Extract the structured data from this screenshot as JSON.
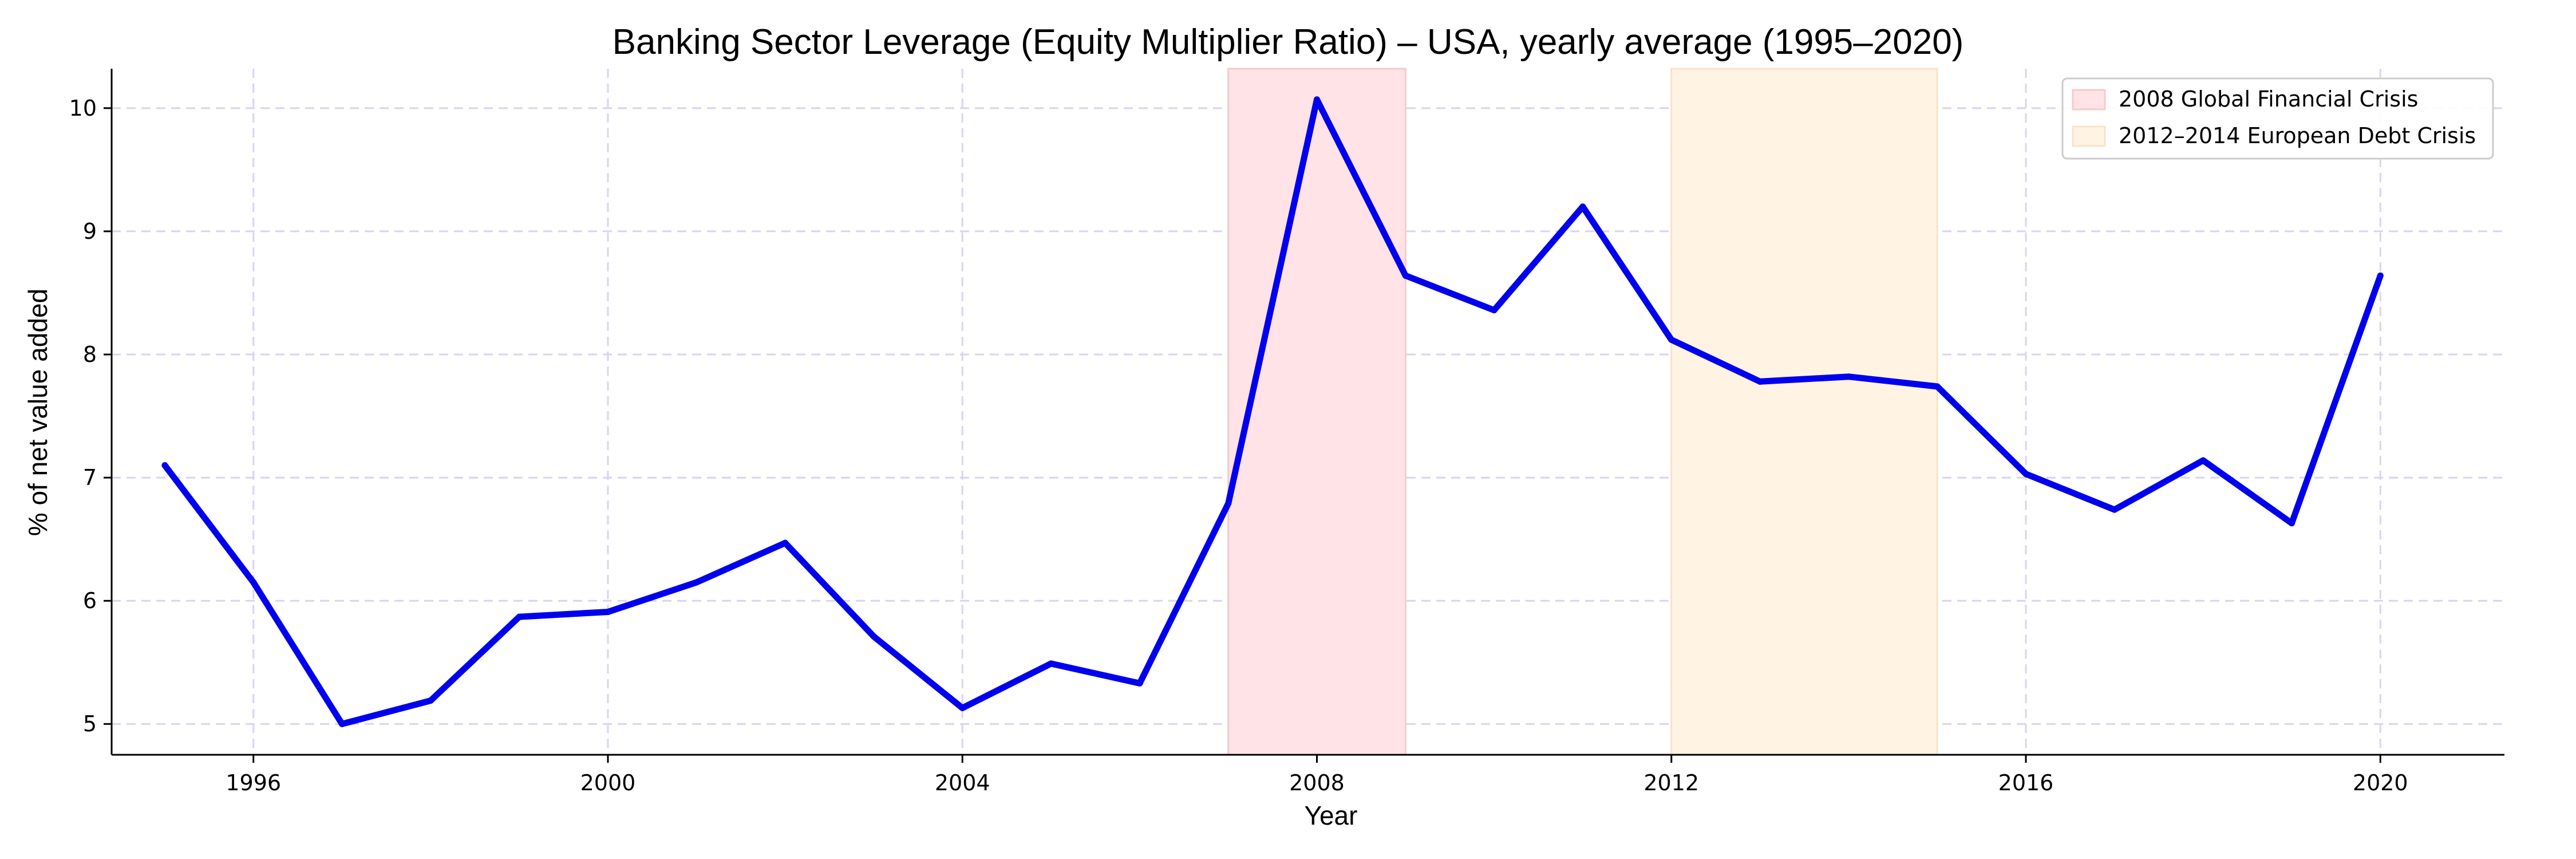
{
  "chart_data": {
    "type": "line",
    "title": "Banking Sector Leverage (Equity Multiplier Ratio) – USA, yearly average (1995–2020)",
    "xlabel": "Year",
    "ylabel": "% of net value added",
    "xlim": [
      1994.4,
      2021.4
    ],
    "ylim": [
      4.75,
      10.32
    ],
    "xticks": [
      1996,
      2000,
      2004,
      2008,
      2012,
      2016,
      2020
    ],
    "yticks": [
      5,
      6,
      7,
      8,
      9,
      10
    ],
    "grid": true,
    "legend_position": "top-right",
    "series": [
      {
        "color": "#0000ee",
        "x": [
          1995,
          1996,
          1997,
          1998,
          1999,
          2000,
          2001,
          2002,
          2003,
          2004,
          2005,
          2006,
          2007,
          2008,
          2009,
          2010,
          2011,
          2012,
          2013,
          2014,
          2015,
          2016,
          2017,
          2018,
          2019,
          2020
        ],
        "values": [
          7.1,
          6.15,
          5.0,
          5.19,
          5.87,
          5.91,
          6.15,
          6.47,
          5.71,
          5.13,
          5.49,
          5.33,
          6.79,
          10.07,
          8.64,
          8.36,
          9.2,
          8.12,
          7.78,
          7.82,
          7.74,
          7.03,
          6.74,
          7.14,
          6.63,
          8.64
        ]
      }
    ],
    "shaded_regions": [
      {
        "label": "2008 Global Financial Crisis",
        "start": 2007,
        "end": 2009,
        "color": "#ffe3e6"
      },
      {
        "label": "2012–2014 European Debt Crisis",
        "start": 2012,
        "end": 2015,
        "color": "#fff3e3"
      }
    ]
  }
}
